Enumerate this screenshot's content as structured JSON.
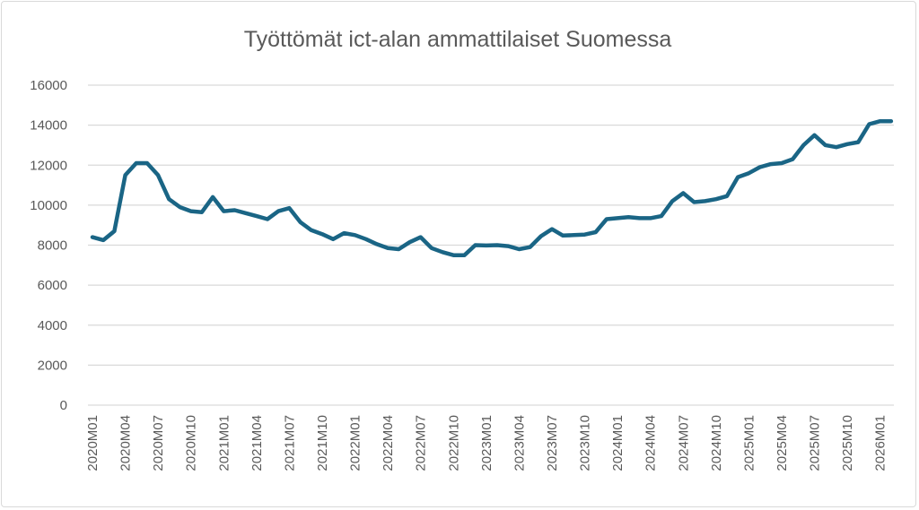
{
  "chart_data": {
    "type": "line",
    "title": "Työttömät ict-alan ammattilaiset Suomessa",
    "xlabel": "",
    "ylabel": "",
    "ylim": [
      0,
      16000
    ],
    "yticks": [
      0,
      2000,
      4000,
      6000,
      8000,
      10000,
      12000,
      14000,
      16000
    ],
    "grid": true,
    "legend": "none",
    "line_color": "#1a6585",
    "x_tick_labels": [
      "2020M01",
      "2020M04",
      "2020M07",
      "2020M10",
      "2021M01",
      "2021M04",
      "2021M07",
      "2021M10",
      "2022M01",
      "2022M04",
      "2022M07",
      "2022M10",
      "2023M01",
      "2023M04",
      "2023M07",
      "2023M10",
      "2024M01",
      "2024M04",
      "2024M07",
      "2024M10",
      "2025M01",
      "2025M04",
      "2025M07",
      "2025M10",
      "2026M01"
    ],
    "x": [
      "2020M01",
      "2020M02",
      "2020M03",
      "2020M04",
      "2020M05",
      "2020M06",
      "2020M07",
      "2020M08",
      "2020M09",
      "2020M10",
      "2020M11",
      "2020M12",
      "2021M01",
      "2021M02",
      "2021M03",
      "2021M04",
      "2021M05",
      "2021M06",
      "2021M07",
      "2021M08",
      "2021M09",
      "2021M10",
      "2021M11",
      "2021M12",
      "2022M01",
      "2022M02",
      "2022M03",
      "2022M04",
      "2022M05",
      "2022M06",
      "2022M07",
      "2022M08",
      "2022M09",
      "2022M10",
      "2022M11",
      "2022M12",
      "2023M01",
      "2023M02",
      "2023M03",
      "2023M04",
      "2023M05",
      "2023M06",
      "2023M07",
      "2023M08",
      "2023M09",
      "2023M10",
      "2023M11",
      "2023M12",
      "2024M01",
      "2024M02",
      "2024M03",
      "2024M04",
      "2024M05",
      "2024M06",
      "2024M07",
      "2024M08",
      "2024M09",
      "2024M10",
      "2024M11",
      "2024M12",
      "2025M01",
      "2025M02",
      "2025M03",
      "2025M04",
      "2025M05",
      "2025M06",
      "2025M07",
      "2025M08",
      "2025M09",
      "2025M10",
      "2025M11",
      "2025M12",
      "2026M01",
      "2026M02"
    ],
    "series": [
      {
        "values": [
          8400,
          8250,
          8700,
          11500,
          12100,
          12100,
          11500,
          10300,
          9900,
          9700,
          9650,
          10400,
          9700,
          9750,
          9600,
          9450,
          9300,
          9700,
          9850,
          9150,
          8750,
          8550,
          8300,
          8600,
          8500,
          8300,
          8050,
          7850,
          7800,
          8150,
          8400,
          7850,
          7650,
          7500,
          7500,
          8000,
          7980,
          8000,
          7950,
          7800,
          7900,
          8450,
          8800,
          8480,
          8500,
          8530,
          8650,
          9300,
          9350,
          9400,
          9350,
          9350,
          9450,
          10200,
          10600,
          10150,
          10200,
          10300,
          10450,
          11400,
          11600,
          11900,
          12050,
          12100,
          12300,
          13000,
          13500,
          13000,
          12900,
          13050,
          13150,
          14050,
          14200,
          14200
        ]
      }
    ]
  }
}
